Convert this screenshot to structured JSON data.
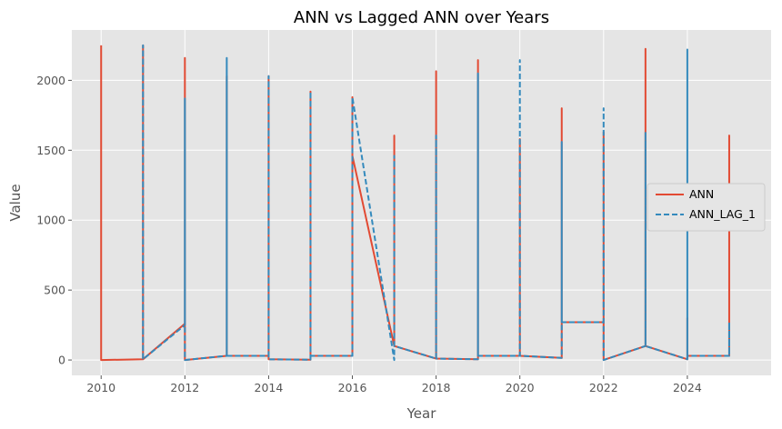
{
  "chart_data": {
    "type": "line",
    "title": "ANN vs Lagged ANN over Years",
    "xlabel": "Year",
    "ylabel": "Value",
    "xlim": [
      2009.3,
      2026.0
    ],
    "ylim": [
      -110,
      2360
    ],
    "xticks": [
      2010,
      2012,
      2014,
      2016,
      2018,
      2020,
      2022,
      2024
    ],
    "yticks": [
      0,
      500,
      1000,
      1500,
      2000
    ],
    "grid": true,
    "background": "#e5e5e5",
    "legend_position": "center-right",
    "series": [
      {
        "name": "ANN",
        "color": "#e24a33",
        "style": "solid",
        "x": [
          2010,
          2010,
          2010,
          2011,
          2011,
          2011,
          2012,
          2012,
          2012,
          2013,
          2013,
          2013,
          2014,
          2014,
          2014,
          2015,
          2015,
          2015,
          2016,
          2016,
          2016,
          2017,
          2017,
          2017,
          2018,
          2018,
          2018,
          2019,
          2019,
          2019,
          2020,
          2020,
          2020,
          2021,
          2021,
          2021,
          2022,
          2022,
          2022,
          2023,
          2023,
          2023,
          2024,
          2024,
          2024,
          2025,
          2025,
          2025
        ],
        "y": [
          2250,
          0,
          0,
          5,
          2250,
          5,
          260,
          2160,
          0,
          30,
          2030,
          30,
          30,
          2030,
          5,
          2,
          1920,
          30,
          30,
          1880,
          1460,
          100,
          1605,
          100,
          10,
          2065,
          10,
          5,
          2145,
          30,
          30,
          1580,
          30,
          15,
          1800,
          270,
          270,
          1630,
          0,
          100,
          2225,
          100,
          5,
          300,
          30,
          30,
          1605,
          30
        ]
      },
      {
        "name": "ANN_LAG_1",
        "color": "#348abd",
        "style": "dashed",
        "x": [
          2011,
          2011,
          2011,
          2012,
          2012,
          2012,
          2013,
          2013,
          2013,
          2014,
          2014,
          2014,
          2015,
          2015,
          2015,
          2016,
          2016,
          2016,
          2017,
          2017,
          2017,
          2018,
          2018,
          2018,
          2019,
          2019,
          2019,
          2020,
          2020,
          2020,
          2021,
          2021,
          2021,
          2022,
          2022,
          2022,
          2023,
          2023,
          2023,
          2024,
          2024,
          2024,
          2025,
          2025,
          2025
        ],
        "y": [
          5,
          2250,
          5,
          250,
          1870,
          0,
          30,
          2160,
          30,
          30,
          2030,
          5,
          2,
          1920,
          30,
          30,
          1880,
          1880,
          0,
          1460,
          100,
          10,
          1605,
          10,
          5,
          2050,
          30,
          30,
          2145,
          30,
          15,
          1560,
          270,
          270,
          1800,
          0,
          100,
          1630,
          100,
          5,
          2220,
          30,
          30,
          270,
          30
        ]
      }
    ]
  }
}
